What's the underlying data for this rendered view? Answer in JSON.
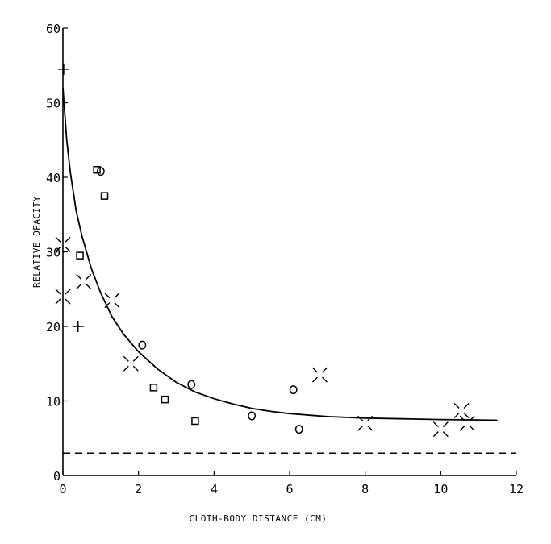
{
  "chart_data": {
    "type": "scatter",
    "title": "",
    "xlabel": "CLOTH-BODY DISTANCE (CM)",
    "ylabel": "RELATIVE OPACITY",
    "xlim": [
      0,
      12
    ],
    "ylim": [
      0,
      60
    ],
    "xticks": [
      0,
      2,
      4,
      6,
      8,
      10,
      12
    ],
    "yticks": [
      0,
      10,
      20,
      30,
      40,
      50,
      60
    ],
    "xtick_labels": [
      "0",
      "2",
      "4",
      "6",
      "8",
      "10",
      "12"
    ],
    "ytick_labels": [
      "0",
      "10",
      "20",
      "30",
      "40",
      "50",
      "60"
    ],
    "grid": false,
    "series": [
      {
        "marker": "plus",
        "x": [
          0.02,
          0.4
        ],
        "y": [
          54.5,
          20.0
        ]
      },
      {
        "marker": "square",
        "x": [
          0.9,
          1.1,
          0.45,
          2.4,
          2.7,
          3.5
        ],
        "y": [
          41.0,
          37.5,
          29.5,
          11.8,
          10.2,
          7.3
        ]
      },
      {
        "marker": "circle",
        "x": [
          1.0,
          2.1,
          3.4,
          5.0,
          6.1,
          6.25
        ],
        "y": [
          40.8,
          17.5,
          12.2,
          8.0,
          11.5,
          6.2
        ]
      },
      {
        "marker": "cross",
        "x": [
          0.0,
          0.0,
          0.55,
          1.3,
          1.8,
          6.8,
          8.0,
          10.0,
          10.55,
          10.7
        ],
        "y": [
          31.0,
          24.0,
          26.0,
          23.5,
          15.0,
          13.5,
          7.0,
          6.2,
          8.7,
          7.0
        ]
      }
    ],
    "fitted_curve": {
      "style": "solid",
      "x": [
        0.0,
        0.1,
        0.2,
        0.35,
        0.5,
        0.75,
        1.0,
        1.3,
        1.6,
        2.0,
        2.5,
        3.0,
        3.5,
        4.0,
        4.5,
        5.0,
        5.5,
        6.0,
        7.0,
        8.0,
        9.0,
        10.0,
        11.0,
        11.5
      ],
      "y": [
        52.0,
        45.0,
        40.5,
        35.5,
        32.2,
        27.8,
        24.5,
        21.3,
        19.0,
        16.6,
        14.3,
        12.5,
        11.2,
        10.3,
        9.6,
        9.0,
        8.6,
        8.3,
        7.9,
        7.7,
        7.6,
        7.5,
        7.45,
        7.4
      ]
    },
    "baseline": {
      "style": "dashed",
      "y": 3.0,
      "x": [
        0,
        12
      ]
    }
  }
}
